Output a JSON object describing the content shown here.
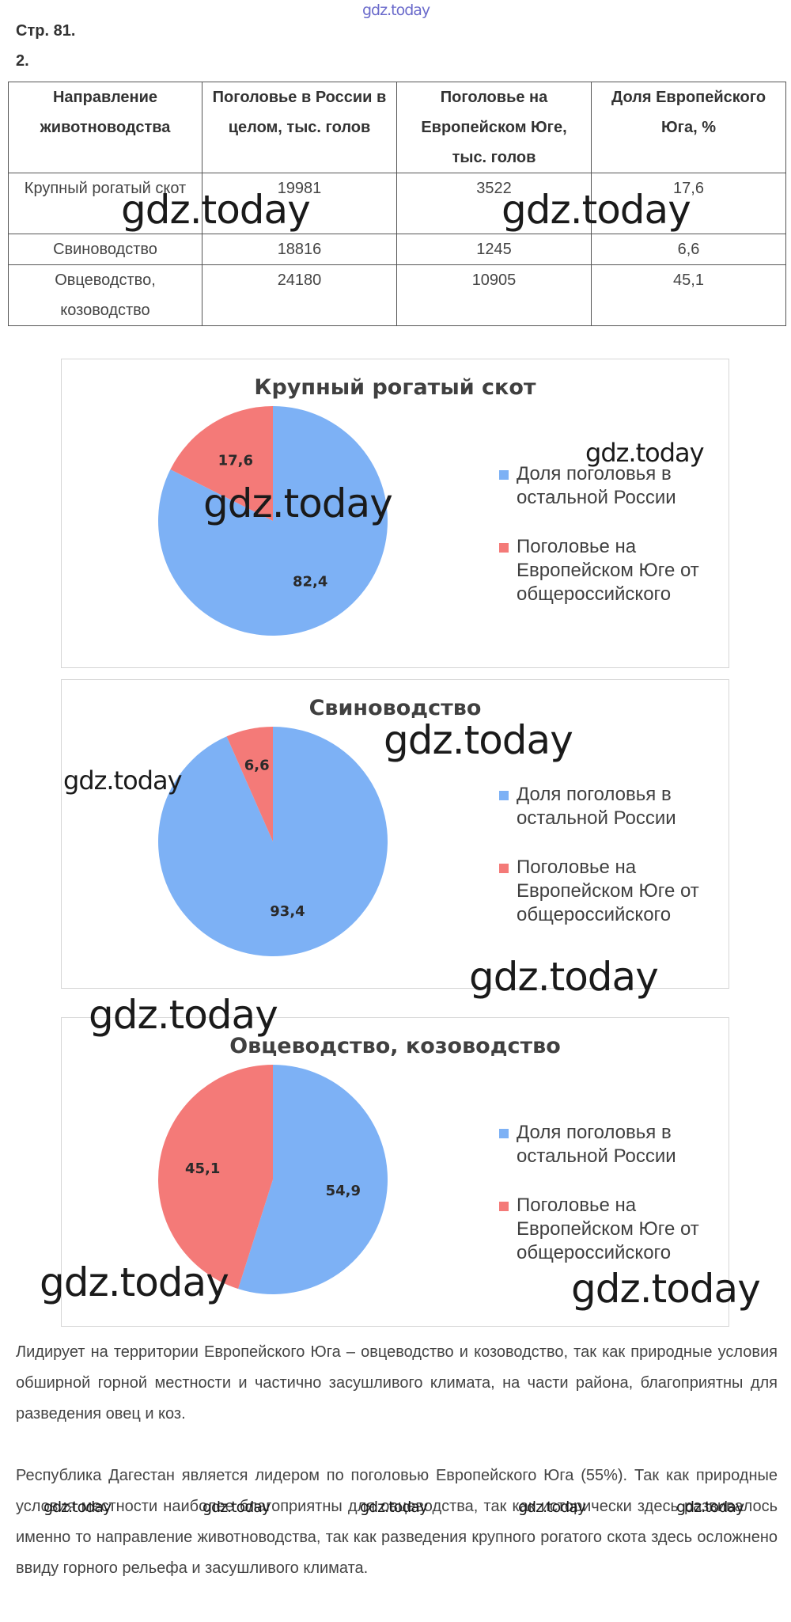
{
  "watermark": "gdz.today",
  "header": {
    "page": "Стр. 81.",
    "task": "2."
  },
  "table": {
    "headers": [
      "Направление животноводства",
      "Поголовье в России в целом, тыс. голов",
      "Поголовье на Европейском Юге, тыс. голов",
      "Доля Европейского Юга, %"
    ],
    "rows": [
      [
        "Крупный рогатый скот",
        "19981",
        "3522",
        "17,6"
      ],
      [
        "Свиноводство",
        "18816",
        "1245",
        "6,6"
      ],
      [
        "Овцеводство, козоводство",
        "24180",
        "10905",
        "45,1"
      ]
    ]
  },
  "colors": {
    "rest_of_russia": "#7db1f5",
    "european_south": "#f47a78"
  },
  "legend": {
    "rest": "Доля поголовья в остальной России",
    "south": "Поголовье на Европейском Юге от общероссийского"
  },
  "chart_data": [
    {
      "type": "pie",
      "title": "Крупный рогатый скот",
      "labels": [
        "Доля поголовья в остальной России",
        "Поголовье на Европейском Юге от общероссийского"
      ],
      "values": [
        82.4,
        17.6
      ],
      "value_labels": [
        "82,4",
        "17,6"
      ],
      "legend": "right"
    },
    {
      "type": "pie",
      "title": "Свиноводство",
      "labels": [
        "Доля поголовья в остальной России",
        "Поголовье на Европейском Юге от общероссийского"
      ],
      "values": [
        93.4,
        6.6
      ],
      "value_labels": [
        "93,4",
        "6,6"
      ],
      "legend": "right"
    },
    {
      "type": "pie",
      "title": "Овцеводство, козоводство",
      "labels": [
        "Доля поголовья в остальной России",
        "Поголовье на Европейском Юге от общероссийского"
      ],
      "values": [
        54.9,
        45.1
      ],
      "value_labels": [
        "54,9",
        "45,1"
      ],
      "legend": "right"
    }
  ],
  "paragraphs": [
    "Лидирует на территории Европейского Юга – овцеводство и козоводство, так как природные условия обширной горной местности и частично засушливого климата, на части района, благоприятны для разведения овец и коз.",
    "Республика Дагестан является лидером по поголовью Европейского Юга (55%). Так как природные условия местности наиболее благоприятны для овцеводства, так как исторически здесь развивалось именно то направление животноводства, так как разведения крупного рогатого скота здесь осложнено ввиду горного рельефа и засушливого климата."
  ]
}
